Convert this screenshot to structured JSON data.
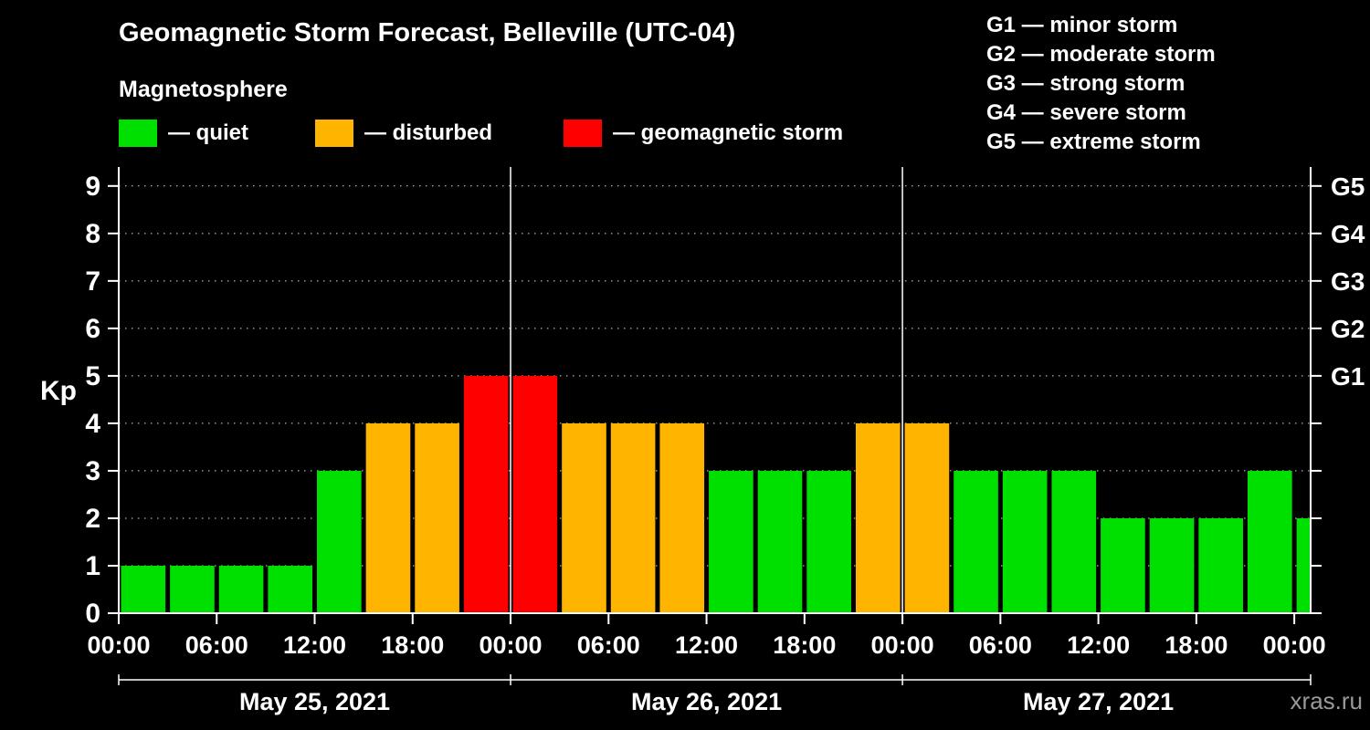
{
  "header": {
    "title": "Geomagnetic Storm Forecast, Belleville (UTC-04)",
    "subtitle": "Magnetosphere"
  },
  "kp_legend": [
    {
      "key": "quiet",
      "label": "— quiet",
      "color": "#00e000"
    },
    {
      "key": "disturbed",
      "label": "— disturbed",
      "color": "#ffb400"
    },
    {
      "key": "storm",
      "label": "— geomagnetic storm",
      "color": "#ff0000"
    }
  ],
  "storm_scale_legend": [
    "G1 — minor storm",
    "G2 — moderate storm",
    "G3 — strong storm",
    "G4 — severe storm",
    "G5 — extreme storm"
  ],
  "watermark": "xras.ru",
  "chart_data": {
    "type": "bar",
    "title": "Geomagnetic Storm Forecast, Belleville (UTC-04)",
    "ylabel": "Kp",
    "ylim": [
      0,
      9.4
    ],
    "y_ticks": [
      0,
      1,
      2,
      3,
      4,
      5,
      6,
      7,
      8,
      9
    ],
    "x_tick_labels": [
      "00:00",
      "06:00",
      "12:00",
      "18:00",
      "00:00",
      "06:00",
      "12:00",
      "18:00",
      "00:00",
      "06:00",
      "12:00",
      "18:00",
      "00:00"
    ],
    "right_axis_labels": [
      {
        "kp": 5,
        "label": "G1"
      },
      {
        "kp": 6,
        "label": "G2"
      },
      {
        "kp": 7,
        "label": "G3"
      },
      {
        "kp": 8,
        "label": "G4"
      },
      {
        "kp": 9,
        "label": "G5"
      }
    ],
    "hours_per_bar": 3,
    "x_hours_total": 73,
    "days": [
      {
        "label": "May 25, 2021",
        "kp_values": [
          1,
          1,
          1,
          1,
          3,
          4,
          4,
          5
        ]
      },
      {
        "label": "May 26, 2021",
        "kp_values": [
          5,
          4,
          4,
          4,
          3,
          3,
          3,
          4
        ]
      },
      {
        "label": "May 27, 2021",
        "kp_values": [
          4,
          3,
          3,
          3,
          2,
          2,
          2,
          3
        ]
      }
    ],
    "partial_next_day_values": [
      2
    ],
    "colors": {
      "quiet": "#00e000",
      "disturbed": "#ffb400",
      "storm": "#ff0000"
    },
    "thresholds": {
      "disturbed_min_kp": 4,
      "storm_min_kp": 5
    },
    "grid": {
      "horizontal": "dotted line at each Kp level",
      "vertical": "solid line at midnight day boundaries"
    },
    "legend_position": "top"
  }
}
